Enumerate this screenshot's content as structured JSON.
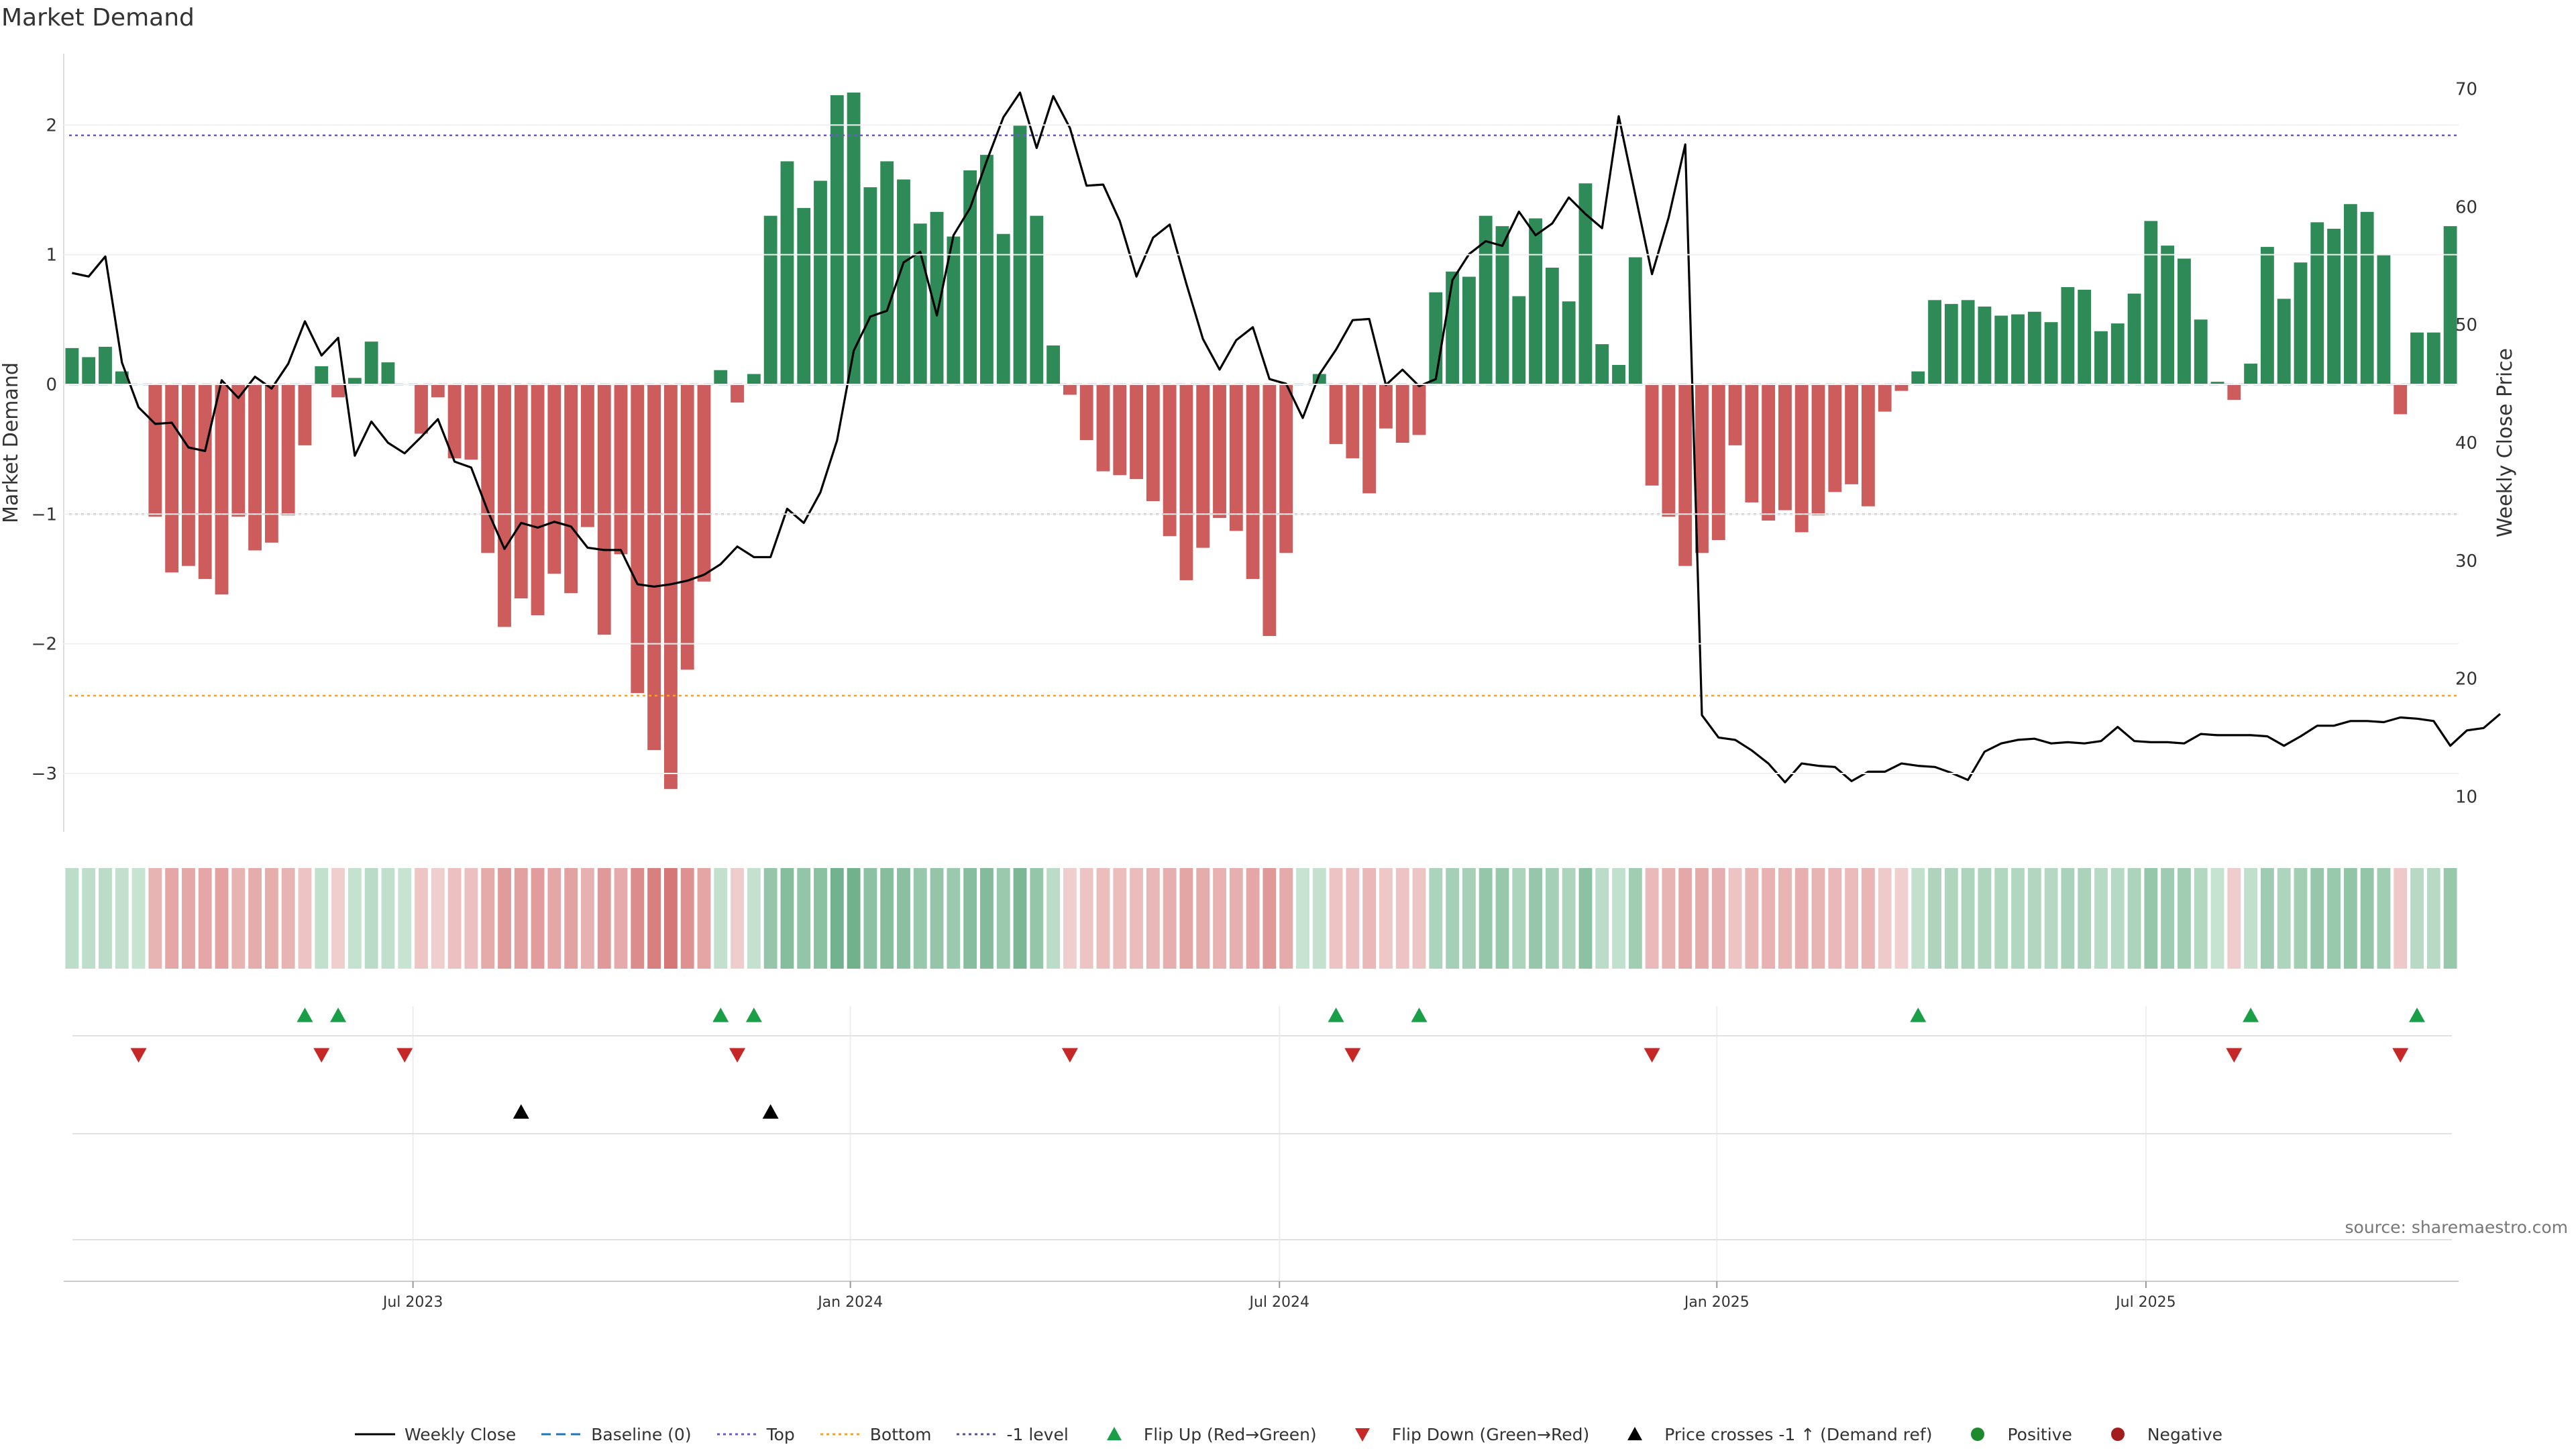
{
  "title": "Market Demand",
  "source": "source: sharemaestro.com",
  "colors": {
    "positive": "#2e8b57",
    "negative": "#cd5c5c",
    "price": "#000000",
    "baseline": "#1f77b4",
    "top": "#6a5acd",
    "bottom": "#ff9f1c",
    "minus_one": "#5a4e9a",
    "flip_up": "#1a9e48",
    "flip_down": "#c62828",
    "cross": "#000000"
  },
  "chart_data": {
    "type": "bar+line",
    "title": "Market Demand",
    "ylabel": "Market Demand",
    "y2label": "Weekly Close Price",
    "ylim": [
      -3.45,
      2.55
    ],
    "y2lim": [
      7,
      73
    ],
    "yticks": [
      2,
      1,
      0,
      -1,
      -2,
      -3
    ],
    "ytick_labels": [
      "2",
      "1",
      "0",
      "−1",
      "−2",
      "−3"
    ],
    "y2ticks": [
      70,
      60,
      50,
      40,
      30,
      20,
      10
    ],
    "x_tick_labels": [
      "Jul 2023",
      "Jan 2024",
      "Jul 2024",
      "Jan 2025",
      "Jul 2025"
    ],
    "x_tick_weeks": [
      20.5,
      46.8,
      72.6,
      98.9,
      124.7
    ],
    "levels": {
      "top": 1.92,
      "bottom": -2.4,
      "minus_one": -1.0,
      "baseline": 0
    },
    "demand": [
      0.28,
      0.21,
      0.29,
      0.1,
      0,
      -1.02,
      -1.45,
      -1.4,
      -1.5,
      -1.62,
      -1.02,
      -1.28,
      -1.22,
      -1.01,
      -0.47,
      0.14,
      -0.1,
      0.05,
      0.33,
      0.17,
      0,
      -0.38,
      -0.1,
      -0.57,
      -0.58,
      -1.3,
      -1.87,
      -1.65,
      -1.78,
      -1.46,
      -1.61,
      -1.1,
      -1.93,
      -1.31,
      -2.38,
      -2.82,
      -3.12,
      -2.2,
      -1.52,
      0.11,
      -0.14,
      0.08,
      1.3,
      1.72,
      1.36,
      1.57,
      2.23,
      2.25,
      1.52,
      1.72,
      1.58,
      1.24,
      1.33,
      1.14,
      1.65,
      1.77,
      1.16,
      2.0,
      1.3,
      0.3,
      -0.08,
      -0.43,
      -0.67,
      -0.7,
      -0.73,
      -0.9,
      -1.17,
      -1.51,
      -1.26,
      -1.03,
      -1.13,
      -1.5,
      -1.94,
      -1.3,
      0,
      0.08,
      -0.46,
      -0.57,
      -0.84,
      -0.34,
      -0.45,
      -0.39,
      0.71,
      0.87,
      0.83,
      1.3,
      1.22,
      0.68,
      1.28,
      0.9,
      0.64,
      1.55,
      0.31,
      0.15,
      0.98,
      -0.78,
      -1.02,
      -1.4,
      -1.3,
      -1.2,
      -0.47,
      -0.91,
      -1.05,
      -0.97,
      -1.14,
      -1.01,
      -0.83,
      -0.77,
      -0.94,
      -0.21,
      -0.05,
      0.1,
      0.65,
      0.62,
      0.65,
      0.6,
      0.53,
      0.54,
      0.56,
      0.48,
      0.75,
      0.73,
      0.41,
      0.47,
      0.7,
      1.26,
      1.07,
      0.97,
      0.5,
      0.02,
      -0.12,
      0.16,
      1.06,
      0.66,
      0.94,
      1.25,
      1.2,
      1.39,
      1.33,
      1.0,
      -0.23,
      0.4,
      0.4,
      1.22
    ],
    "weekly_close": [
      54.4,
      54.1,
      55.8,
      46.8,
      43.0,
      41.6,
      41.7,
      39.6,
      39.3,
      45.3,
      43.8,
      45.6,
      44.6,
      46.7,
      50.3,
      47.4,
      48.9,
      38.9,
      41.8,
      40.0,
      39.1,
      40.5,
      42.0,
      38.4,
      37.9,
      34.2,
      31.0,
      33.2,
      32.8,
      33.3,
      32.9,
      31.1,
      30.9,
      30.9,
      28.0,
      27.8,
      28.0,
      28.3,
      28.8,
      29.7,
      31.2,
      30.3,
      30.3,
      34.4,
      33.2,
      35.8,
      40.2,
      47.8,
      50.7,
      51.2,
      55.3,
      56.2,
      50.8,
      57.6,
      59.9,
      63.9,
      67.6,
      69.7,
      65.0,
      69.4,
      66.7,
      61.8,
      61.9,
      58.8,
      54.1,
      57.4,
      58.5,
      53.5,
      48.8,
      46.2,
      48.7,
      49.8,
      45.4,
      45.0,
      42.1,
      45.8,
      47.9,
      50.4,
      50.5,
      44.9,
      46.2,
      44.8,
      45.4,
      53.8,
      56.0,
      57.1,
      56.7,
      59.6,
      57.6,
      58.6,
      60.8,
      59.4,
      58.2,
      67.7,
      61.0,
      54.3,
      59.1,
      65.3,
      16.9,
      15.0,
      14.8,
      13.9,
      12.8,
      11.2,
      12.8,
      12.6,
      12.5,
      11.3,
      12.1,
      12.1,
      12.8,
      12.6,
      12.5,
      12.0,
      11.4,
      13.8,
      14.5,
      14.8,
      14.9,
      14.5,
      14.6,
      14.5,
      14.7,
      15.9,
      14.7,
      14.6,
      14.6,
      14.5,
      15.3,
      15.2,
      15.2,
      15.2,
      15.1,
      14.3,
      15.1,
      16.0,
      16.0,
      16.4,
      16.4,
      16.3,
      16.7,
      16.6,
      16.4,
      14.3,
      15.6,
      15.8,
      17.0
    ],
    "flip_up_weeks": [
      14,
      16,
      39,
      41,
      76,
      81,
      111,
      131,
      141
    ],
    "flip_down_weeks": [
      4,
      15,
      20,
      40,
      60,
      77,
      95,
      130,
      140
    ],
    "price_cross_weeks": [
      27,
      42
    ]
  },
  "legend": [
    {
      "label": "Weekly Close",
      "icon": "solid-line-icon"
    },
    {
      "label": "Baseline (0)",
      "icon": "dashed-line-icon"
    },
    {
      "label": "Top",
      "icon": "dotted-line-icon"
    },
    {
      "label": "Bottom",
      "icon": "dotted-line-icon"
    },
    {
      "label": "-1 level",
      "icon": "dotted-line-icon"
    },
    {
      "label": "Flip Up (Red→Green)",
      "icon": "triangle-up-icon"
    },
    {
      "label": "Flip Down (Green→Red)",
      "icon": "triangle-down-icon"
    },
    {
      "label": "Price crosses -1 ↑ (Demand ref)",
      "icon": "triangle-up-icon"
    },
    {
      "label": "Positive",
      "icon": "circle-icon"
    },
    {
      "label": "Negative",
      "icon": "circle-icon"
    }
  ]
}
